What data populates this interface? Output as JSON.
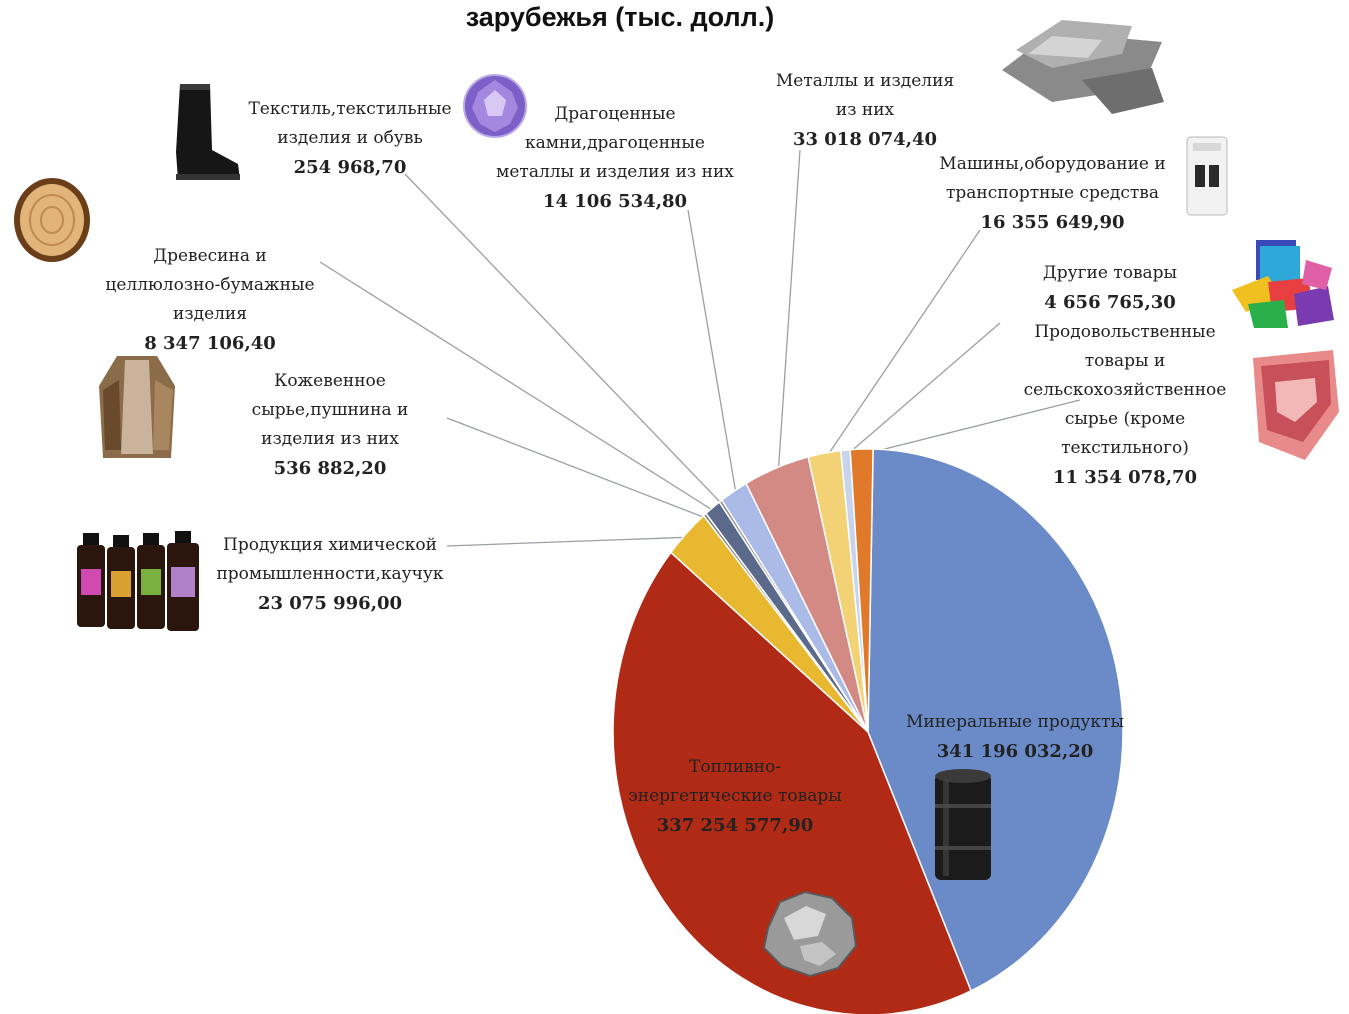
{
  "chart_data": {
    "type": "pie",
    "title": "зарубежья (тыс. долл.)",
    "slices": [
      {
        "label": "Минеральные продукты",
        "value_text": "341 196 032,20",
        "value": 341196032.2,
        "color": "#6b8bc8",
        "icon": "oil-barrel-icon"
      },
      {
        "label": "Топливно-энергетические товары",
        "value_text": "337 254 577,90",
        "value": 337254577.9,
        "color": "#b02a16",
        "icon": "metal-ore-icon"
      },
      {
        "label": "Продукция химической промышленности,каучук",
        "value_text": "23 075 996,00",
        "value": 23075996.0,
        "color": "#e8b830",
        "icon": "chemical-bottles-icon"
      },
      {
        "label": "Кожевенное сырье,пушнина и изделия из них",
        "value_text": "536 882,20",
        "value": 536882.2,
        "color": "#7a7a7a",
        "icon": "fur-coat-icon"
      },
      {
        "label": "Древесина и целлюлозно-бумажные изделия",
        "value_text": "8 347 106,40",
        "value": 8347106.4,
        "color": "#5b6a8a",
        "icon": "wood-log-icon"
      },
      {
        "label": "Текстиль,текстильные изделия и обувь",
        "value_text": "254 968,70",
        "value": 254968.7,
        "color": "#8a8a8a",
        "icon": "boot-icon"
      },
      {
        "label": "Драгоценные камни,драгоценные металлы и изделия из них",
        "value_text": "14 106 534,80",
        "value": 14106534.8,
        "color": "#a9bbe6",
        "icon": "gem-icon"
      },
      {
        "label": "Металлы и изделия из них",
        "value_text": "33 018 074,40",
        "value": 33018074.4,
        "color": "#d48a84",
        "icon": "metal-ingots-icon"
      },
      {
        "label": "Машины,оборудование и транспортные средства",
        "value_text": "16 355 649,90",
        "value": 16355649.9,
        "color": "#f2d274",
        "icon": "circuit-breaker-icon"
      },
      {
        "label": "Другие товары",
        "value_text": "4 656 765,30",
        "value": 4656765.3,
        "color": "#c8d4ec",
        "icon": "fabric-swatches-icon"
      },
      {
        "label": "Продовольственные товары и сельскохозяйственное сырье (кроме текстильного)",
        "value_text": "11 354 078,70",
        "value": 11354078.7,
        "color": "#e07a2a",
        "icon": "meat-icon"
      }
    ]
  }
}
